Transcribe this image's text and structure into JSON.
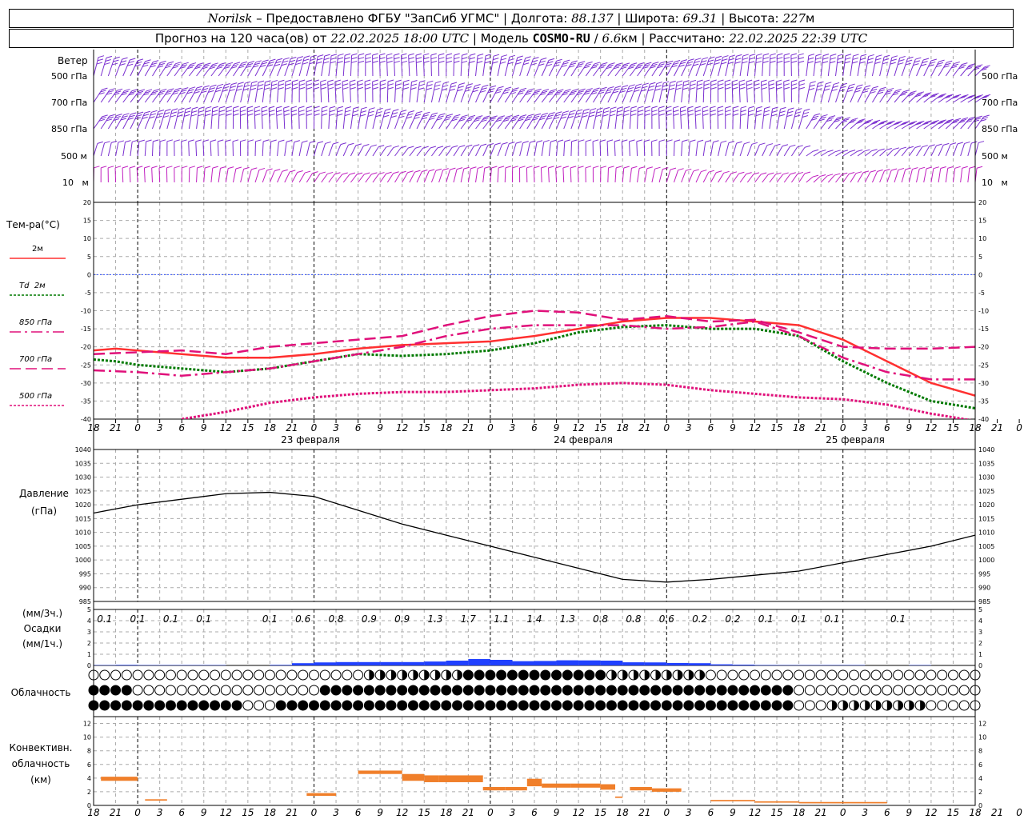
{
  "header": {
    "station": "Norilsk",
    "dash": "–",
    "provider": "Предоставлено ФГБУ \"ЗапСиб УГМС\"",
    "lon_label": "Долгота:",
    "lon": "88.137",
    "lat_label": "Широта:",
    "lat": "69.31",
    "alt_label": "Высота:",
    "alt": "227",
    "alt_unit": "м",
    "forecast_label": "Прогноз на 120 часа(ов) от",
    "forecast_from": "22.02.2025 18:00 UTC",
    "model_label": "Модель",
    "model": "COSMO-RU",
    "model_res": "6.6",
    "model_res_unit": "км",
    "calc_label": "Рассчитано:",
    "calc_time": "22.02.2025 22:39 UTC"
  },
  "wind_panel": {
    "title": "Ветер",
    "levels": [
      "500 гПа",
      "700 гПа",
      "850 гПа",
      "500 м",
      "10   м"
    ],
    "colors": {
      "barbs": "#7a2fd0",
      "low": "#c01fc0"
    }
  },
  "temp_panel": {
    "title": "Тем-ра(°C)",
    "legend": [
      {
        "label": "2м",
        "color": "#ff3030",
        "style": "solid"
      },
      {
        "label": "Td  2м",
        "color": "#007a00",
        "style": "dotted"
      },
      {
        "label": "850 гПа",
        "color": "#e0107a",
        "style": "dashdot"
      },
      {
        "label": "700 гПа",
        "color": "#e0107a",
        "style": "dashed"
      },
      {
        "label": "500 гПа",
        "color": "#e0107a",
        "style": "dotted"
      }
    ],
    "yticks": [
      "20",
      "15",
      "10",
      "5",
      "0",
      "-5",
      "-10",
      "-15",
      "-20",
      "-25",
      "-30",
      "-35",
      "-40"
    ]
  },
  "pressure_panel": {
    "title": "Давление",
    "unit": "(гПа)",
    "yticks": [
      "1040",
      "1035",
      "1030",
      "1025",
      "1020",
      "1015",
      "1010",
      "1005",
      "1000",
      "995",
      "990",
      "985"
    ]
  },
  "precip_panel": {
    "unit3": "(мм/3ч.)",
    "title": "Осадки",
    "unit1": "(мм/1ч.)",
    "yticks": [
      "5",
      "4",
      "3",
      "2",
      "1",
      "0"
    ],
    "values3h": [
      "0.1",
      "0.1",
      "0.1",
      "0.1",
      "",
      "0.1",
      "0.6",
      "0.8",
      "0.9",
      "0.9",
      "1.3",
      "1.7",
      "1.1",
      "1.4",
      "1.3",
      "0.8",
      "0.8",
      "0.6",
      "0.2",
      "0.2",
      "0.1",
      "0.1",
      "0.1",
      "",
      "0.1",
      ""
    ]
  },
  "cloud_panel": {
    "title": "Облачность"
  },
  "conv_panel": {
    "title1": "Конвективн.",
    "title2": "облачность",
    "unit": "(км)",
    "yticks": [
      "12",
      "10",
      "8",
      "6",
      "4",
      "2",
      "0"
    ]
  },
  "axis": {
    "hours": [
      "18",
      "21",
      "0",
      "3",
      "6",
      "9",
      "12",
      "15",
      "18",
      "21",
      "0",
      "3",
      "6",
      "9",
      "12",
      "15",
      "18",
      "21",
      "0",
      "3",
      "6",
      "9",
      "12",
      "15",
      "18",
      "21",
      "0",
      "3",
      "6",
      "9",
      "12",
      "15",
      "18",
      "21",
      "0",
      "3",
      "6",
      "9",
      "12",
      "15",
      "18",
      "21",
      "0"
    ],
    "days": [
      "23 февраля",
      "24 февраля",
      "25 февраля"
    ]
  },
  "chart_data": [
    {
      "type": "line",
      "title": "Тем-ра(°C)",
      "x_unit": "hours from 22.02.2025 18:00 UTC",
      "ylim": [
        -40,
        20
      ],
      "series": [
        {
          "name": "2м",
          "x": [
            0,
            3,
            6,
            12,
            18,
            24,
            30,
            36,
            42,
            48,
            54,
            60,
            66,
            72,
            78,
            84,
            90,
            96,
            102,
            108,
            114,
            120
          ],
          "values": [
            -21,
            -20.5,
            -21,
            -22,
            -23,
            -23,
            -22,
            -20.5,
            -19.5,
            -19,
            -18.5,
            -17,
            -15,
            -13,
            -12,
            -12,
            -13,
            -14,
            -18,
            -24,
            -30,
            -33.5
          ]
        },
        {
          "name": "Td  2м",
          "x": [
            0,
            3,
            6,
            12,
            18,
            24,
            30,
            36,
            42,
            48,
            54,
            60,
            66,
            72,
            78,
            84,
            90,
            96,
            102,
            108,
            114,
            120
          ],
          "values": [
            -23.5,
            -24,
            -25,
            -26,
            -27,
            -26,
            -24,
            -22,
            -22.5,
            -22,
            -21,
            -19,
            -16,
            -14.5,
            -14,
            -15,
            -15,
            -17,
            -24,
            -30,
            -35,
            -37
          ]
        },
        {
          "name": "850 гПа",
          "x": [
            0,
            6,
            12,
            18,
            24,
            30,
            36,
            42,
            48,
            54,
            60,
            66,
            72,
            78,
            84,
            90,
            96,
            102,
            108,
            114,
            120
          ],
          "values": [
            -26.5,
            -27,
            -28,
            -27,
            -26,
            -24,
            -22,
            -20,
            -17,
            -15,
            -14,
            -14,
            -14,
            -15,
            -14.5,
            -13,
            -17,
            -23,
            -27,
            -29,
            -29
          ]
        },
        {
          "name": "700 гПа",
          "x": [
            0,
            6,
            12,
            18,
            24,
            30,
            36,
            42,
            48,
            54,
            60,
            66,
            72,
            78,
            84,
            90,
            96,
            102,
            108,
            114,
            120
          ],
          "values": [
            -22,
            -21.5,
            -21,
            -22,
            -20,
            -19,
            -18,
            -17,
            -14,
            -11.5,
            -10,
            -10.5,
            -12.5,
            -11.5,
            -13,
            -12.5,
            -16,
            -20,
            -20.5,
            -20.5,
            -20
          ]
        },
        {
          "name": "500 гПа",
          "x": [
            12,
            18,
            24,
            30,
            36,
            42,
            48,
            54,
            60,
            66,
            72,
            78,
            84,
            90,
            96,
            102,
            108,
            114,
            120
          ],
          "values": [
            -40,
            -38,
            -35.5,
            -34,
            -33,
            -32.5,
            -32.5,
            -32,
            -31.5,
            -30.5,
            -30,
            -30.5,
            -32,
            -33,
            -34,
            -34.5,
            -36,
            -38.5,
            -40.5
          ]
        }
      ]
    },
    {
      "type": "line",
      "title": "Давление",
      "x_unit": "hours from 22.02.2025 18:00 UTC",
      "ylim": [
        985,
        1040
      ],
      "series": [
        {
          "name": "Давление",
          "x": [
            0,
            6,
            12,
            18,
            24,
            30,
            36,
            42,
            48,
            54,
            60,
            66,
            72,
            78,
            84,
            90,
            96,
            102,
            108,
            114,
            120
          ],
          "values": [
            1017,
            1020,
            1022,
            1024,
            1024.5,
            1023,
            1018,
            1013,
            1009,
            1005,
            1001,
            997,
            993,
            992,
            993,
            994.5,
            996,
            999,
            1002,
            1005,
            1009
          ]
        }
      ]
    },
    {
      "type": "bar",
      "title": "Осадки",
      "x_unit": "hours from 22.02.2025 18:00 UTC",
      "ylim": [
        0,
        5
      ],
      "series": [
        {
          "name": "(мм/1ч.)",
          "x": [
            3,
            6,
            9,
            12,
            15,
            18,
            21,
            24,
            27,
            30,
            33,
            36,
            39,
            42,
            45,
            48,
            51,
            54,
            57,
            60,
            63,
            66,
            69,
            72,
            75,
            78,
            81,
            84,
            87,
            90,
            93,
            96,
            99,
            102,
            105,
            108,
            111,
            114,
            117,
            120
          ],
          "values": [
            0.03,
            0.05,
            0.03,
            0.03,
            0.03,
            0.03,
            0,
            0,
            0.05,
            0.2,
            0.27,
            0.3,
            0.3,
            0.3,
            0.3,
            0.35,
            0.43,
            0.57,
            0.5,
            0.38,
            0.4,
            0.46,
            0.45,
            0.43,
            0.28,
            0.27,
            0.22,
            0.2,
            0.1,
            0.07,
            0.04,
            0.03,
            0.03,
            0.03,
            0.03,
            0,
            0,
            0.03,
            0,
            0
          ]
        }
      ]
    },
    {
      "type": "bar",
      "title": "Конвективн. облачность",
      "x_unit": "hours from 22.02.2025 18:00 UTC",
      "ylim": [
        0,
        13
      ],
      "series": [
        {
          "name": "(км)",
          "segments": [
            [
              1,
              6,
              3.6,
              4.2
            ],
            [
              7,
              10,
              0.7,
              0.9
            ],
            [
              29,
              33,
              1.4,
              1.8
            ],
            [
              36,
              42,
              4.6,
              5.1
            ],
            [
              42,
              45,
              3.6,
              4.6
            ],
            [
              45,
              47,
              3.4,
              4.4
            ],
            [
              47,
              53,
              3.4,
              4.4
            ],
            [
              53,
              56,
              2.2,
              2.7
            ],
            [
              56,
              59,
              2.2,
              2.7
            ],
            [
              59,
              61,
              2.8,
              3.9
            ],
            [
              61,
              65,
              2.6,
              3.2
            ],
            [
              65,
              69,
              2.6,
              3.2
            ],
            [
              69,
              71,
              2.3,
              3.1
            ],
            [
              71,
              72,
              1.1,
              1.3
            ],
            [
              73,
              76,
              2.2,
              2.7
            ],
            [
              76,
              80,
              2.0,
              2.5
            ],
            [
              84,
              90,
              0.6,
              0.8
            ],
            [
              90,
              96,
              0.4,
              0.6
            ],
            [
              96,
              108,
              0.3,
              0.5
            ]
          ]
        }
      ]
    }
  ]
}
